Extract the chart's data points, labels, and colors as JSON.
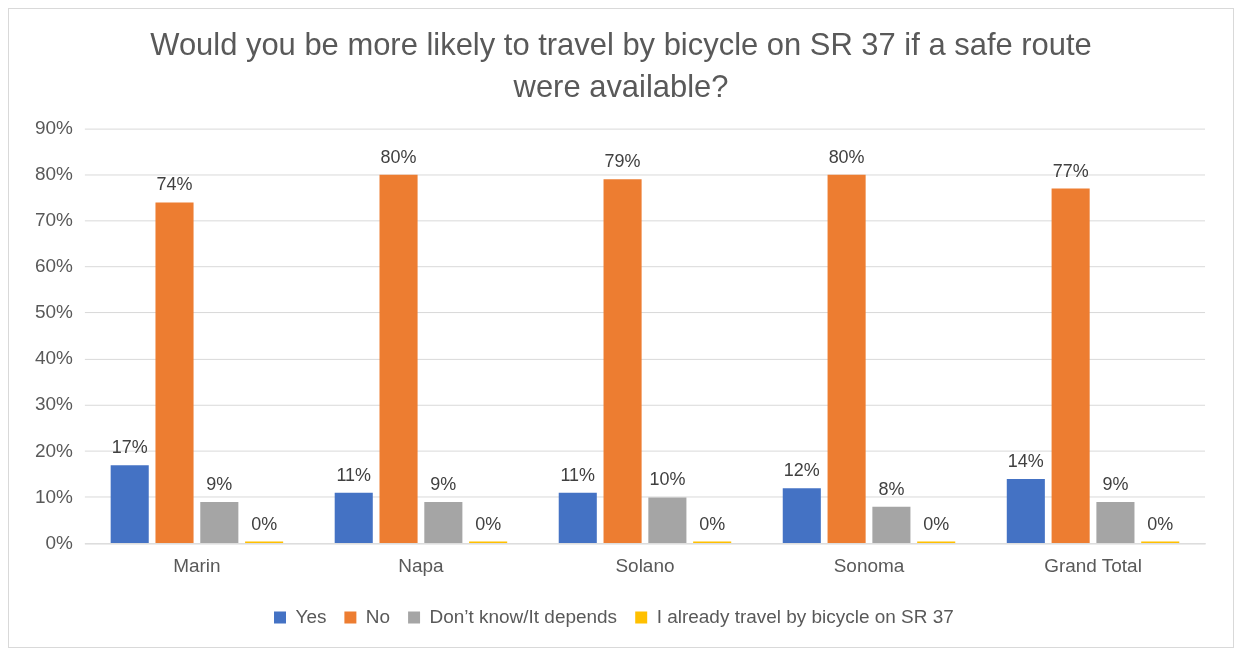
{
  "chart_data": {
    "type": "bar",
    "title": "Would you be more likely to travel by bicycle on SR 37 if a safe route were available?",
    "categories": [
      "Marin",
      "Napa",
      "Solano",
      "Sonoma",
      "Grand Total"
    ],
    "series": [
      {
        "name": "Yes",
        "color": "#4472c4",
        "values": [
          17,
          11,
          11,
          12,
          14
        ],
        "value_labels": [
          "17%",
          "11%",
          "11%",
          "12%",
          "14%"
        ]
      },
      {
        "name": "No",
        "color": "#ed7d31",
        "values": [
          74,
          80,
          79,
          80,
          77
        ],
        "value_labels": [
          "74%",
          "80%",
          "79%",
          "80%",
          "77%"
        ]
      },
      {
        "name": "Don’t know/It depends",
        "color": "#a5a5a5",
        "values": [
          9,
          9,
          10,
          8,
          9
        ],
        "value_labels": [
          "9%",
          "9%",
          "10%",
          "8%",
          "9%"
        ]
      },
      {
        "name": "I already travel by bicycle on SR 37",
        "color": "#ffc000",
        "values": [
          0,
          0,
          0,
          0,
          0
        ],
        "value_labels": [
          "0%",
          "0%",
          "0%",
          "0%",
          "0%"
        ]
      }
    ],
    "ylim": [
      0,
      90
    ],
    "yticks": [
      {
        "value": 0,
        "label": "0%"
      },
      {
        "value": 10,
        "label": "10%"
      },
      {
        "value": 20,
        "label": "20%"
      },
      {
        "value": 30,
        "label": "30%"
      },
      {
        "value": 40,
        "label": "40%"
      },
      {
        "value": 50,
        "label": "50%"
      },
      {
        "value": 60,
        "label": "60%"
      },
      {
        "value": 70,
        "label": "70%"
      },
      {
        "value": 80,
        "label": "80%"
      },
      {
        "value": 90,
        "label": "90%"
      }
    ],
    "grid": "y",
    "legend": "bottom"
  }
}
